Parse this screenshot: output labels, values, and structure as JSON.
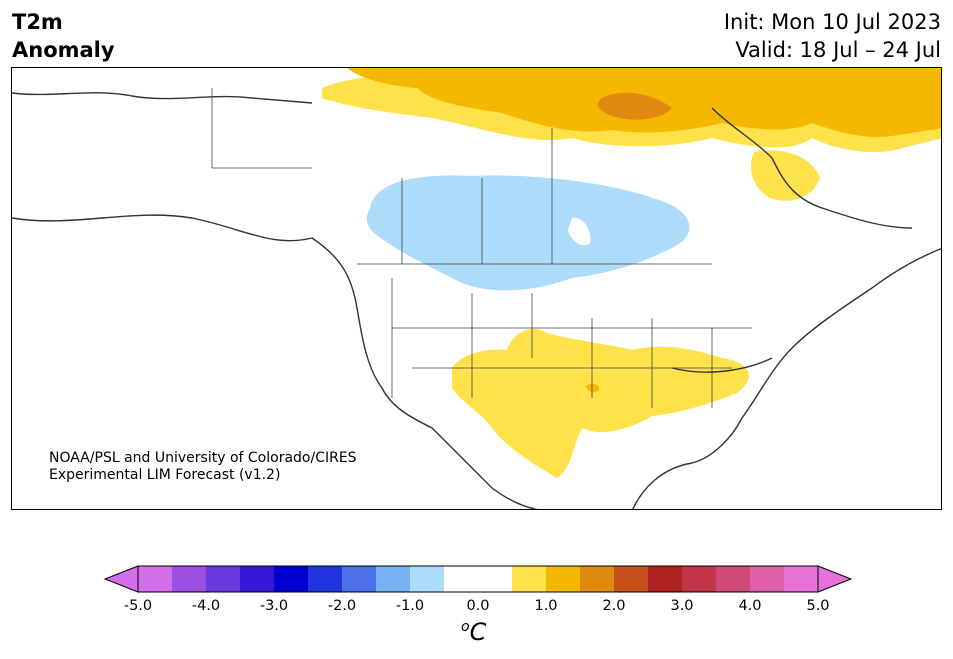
{
  "title": {
    "left_line1": "T2m",
    "left_line2": "Anomaly",
    "init": "Init: Mon 10 Jul 2023",
    "valid": "Valid: 18 Jul – 24 Jul"
  },
  "credit": {
    "line1": "NOAA/PSL and University of Colorado/CIRES",
    "line2": "Experimental LIM Forecast (v1.2)"
  },
  "colorbar": {
    "unit": "C",
    "unit_prefix": "o",
    "ticks": [
      "-5.0",
      "-4.0",
      "-3.0",
      "-2.0",
      "-1.0",
      "0.0",
      "1.0",
      "2.0",
      "3.0",
      "4.0",
      "5.0"
    ],
    "colors": [
      "#d46ee8",
      "#9c4fe0",
      "#6a3adf",
      "#3519d6",
      "#0000d0",
      "#2233e0",
      "#4c70e8",
      "#77b2f4",
      "#acdcfa",
      "#ffffff",
      "#ffffff",
      "#ffe14a",
      "#f4b800",
      "#e08a10",
      "#c6501a",
      "#b02222",
      "#c23548",
      "#d04a78",
      "#dd60a8",
      "#e672d8"
    ],
    "min_color": "#d46ee8",
    "max_color": "#e672d8"
  },
  "colors": {
    "cool_light_blue": "#acdcfa",
    "warm_yellow": "#ffe14a",
    "warm_gold": "#f4b800",
    "warm_orange": "#e08a10",
    "coastline": "#333333"
  }
}
